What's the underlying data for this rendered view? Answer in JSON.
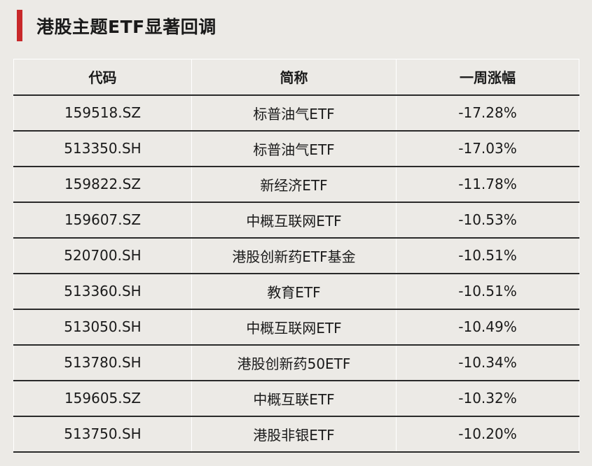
{
  "title": "港股主题ETF显著回调",
  "colors": {
    "accent": "#C8282A",
    "background": "#ECEAE6"
  },
  "table": {
    "headers": [
      "代码",
      "简称",
      "一周涨幅"
    ],
    "rows": [
      {
        "code": "159518.SZ",
        "name": "标普油气ETF",
        "change": "-17.28%"
      },
      {
        "code": "513350.SH",
        "name": "标普油气ETF",
        "change": "-17.03%"
      },
      {
        "code": "159822.SZ",
        "name": "新经济ETF",
        "change": "-11.78%"
      },
      {
        "code": "159607.SZ",
        "name": "中概互联网ETF",
        "change": "-10.53%"
      },
      {
        "code": "520700.SH",
        "name": "港股创新药ETF基金",
        "change": "-10.51%"
      },
      {
        "code": "513360.SH",
        "name": "教育ETF",
        "change": "-10.51%"
      },
      {
        "code": "513050.SH",
        "name": "中概互联网ETF",
        "change": "-10.49%"
      },
      {
        "code": "513780.SH",
        "name": "港股创新药50ETF",
        "change": "-10.34%"
      },
      {
        "code": "159605.SZ",
        "name": "中概互联ETF",
        "change": "-10.32%"
      },
      {
        "code": "513750.SH",
        "name": "港股非银ETF",
        "change": "-10.20%"
      }
    ]
  }
}
